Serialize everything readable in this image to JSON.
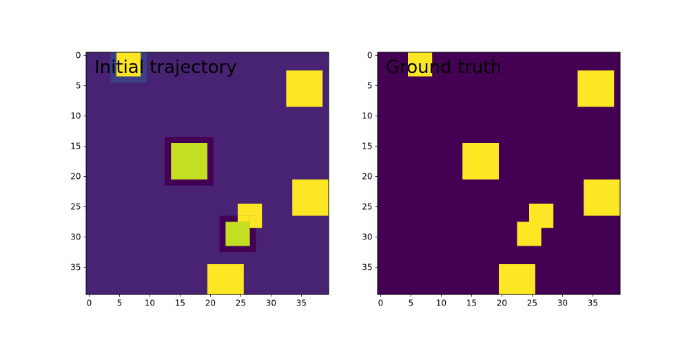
{
  "figure": {
    "colors": {
      "background": "#ffffff",
      "axis": "#000000",
      "low": "#440154",
      "high": "#fde725"
    }
  },
  "chart_data": [
    {
      "type": "heatmap",
      "title": "Initial trajectory",
      "xlabel": "",
      "ylabel": "",
      "xlim": [
        -0.5,
        39.5
      ],
      "ylim": [
        39.5,
        -0.5
      ],
      "xticks": [
        0,
        5,
        10,
        15,
        20,
        25,
        30,
        35
      ],
      "yticks": [
        0,
        5,
        10,
        15,
        20,
        25,
        30,
        35
      ],
      "grid": false,
      "background_color": "#482374",
      "cells": [
        {
          "x": [
            3.5,
            9.5
          ],
          "y": [
            -0.5,
            4.5
          ],
          "color": "#3b3f85"
        },
        {
          "x": [
            4.5,
            8.5
          ],
          "y": [
            -0.5,
            3.5
          ],
          "color": "#fde725"
        },
        {
          "x": [
            32.5,
            38.5
          ],
          "y": [
            2.5,
            8.5
          ],
          "color": "#fde725"
        },
        {
          "x": [
            12.5,
            20.5
          ],
          "y": [
            13.5,
            21.5
          ],
          "color": "#440154"
        },
        {
          "x": [
            13.5,
            19.5
          ],
          "y": [
            14.5,
            20.5
          ],
          "color": "#c2df23"
        },
        {
          "x": [
            33.5,
            39.5
          ],
          "y": [
            20.5,
            26.5
          ],
          "color": "#fde725"
        },
        {
          "x": [
            24.5,
            28.5
          ],
          "y": [
            24.5,
            28.5
          ],
          "color": "#fde725"
        },
        {
          "x": [
            21.5,
            27.5
          ],
          "y": [
            26.5,
            32.5
          ],
          "color": "#440154"
        },
        {
          "x": [
            22.5,
            26.5
          ],
          "y": [
            27.5,
            31.5
          ],
          "color": "#c2df23"
        },
        {
          "x": [
            24.5,
            26.5
          ],
          "y": [
            26.5,
            27.5
          ],
          "color": "#fde725"
        },
        {
          "x": [
            26.5,
            27.5
          ],
          "y": [
            26.5,
            28.5
          ],
          "color": "#fde725"
        },
        {
          "x": [
            19.5,
            25.5
          ],
          "y": [
            34.5,
            39.5
          ],
          "color": "#fde725"
        }
      ]
    },
    {
      "type": "heatmap",
      "title": "Ground truth",
      "xlabel": "",
      "ylabel": "",
      "xlim": [
        -0.5,
        39.5
      ],
      "ylim": [
        39.5,
        -0.5
      ],
      "xticks": [
        0,
        5,
        10,
        15,
        20,
        25,
        30,
        35
      ],
      "yticks": [
        0,
        5,
        10,
        15,
        20,
        25,
        30,
        35
      ],
      "grid": false,
      "background_color": "#440154",
      "cells": [
        {
          "x": [
            4.5,
            8.5
          ],
          "y": [
            -0.5,
            3.5
          ],
          "color": "#fde725"
        },
        {
          "x": [
            32.5,
            38.5
          ],
          "y": [
            2.5,
            8.5
          ],
          "color": "#fde725"
        },
        {
          "x": [
            13.5,
            19.5
          ],
          "y": [
            14.5,
            20.5
          ],
          "color": "#fde725"
        },
        {
          "x": [
            33.5,
            39.5
          ],
          "y": [
            20.5,
            26.5
          ],
          "color": "#fde725"
        },
        {
          "x": [
            24.5,
            28.5
          ],
          "y": [
            24.5,
            28.5
          ],
          "color": "#fde725"
        },
        {
          "x": [
            22.5,
            26.5
          ],
          "y": [
            27.5,
            31.5
          ],
          "color": "#fde725"
        },
        {
          "x": [
            19.5,
            25.5
          ],
          "y": [
            34.5,
            39.5
          ],
          "color": "#fde725"
        }
      ]
    }
  ]
}
